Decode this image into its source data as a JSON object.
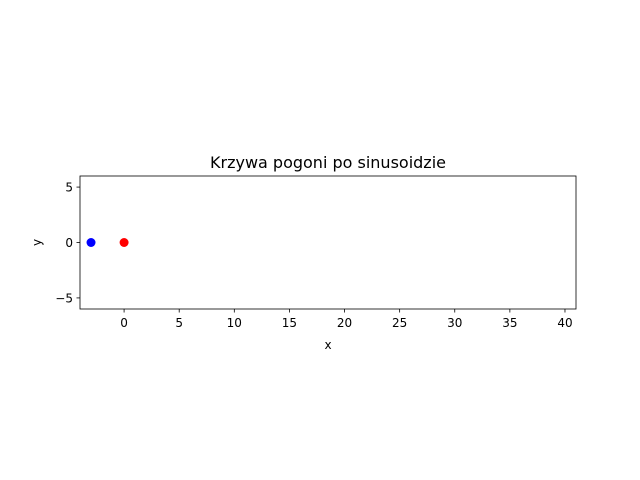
{
  "chart_data": {
    "type": "scatter",
    "title": "Krzywa pogoni po sinusoidzie",
    "xlabel": "x",
    "ylabel": "y",
    "xlim": [
      -4,
      41
    ],
    "ylim": [
      -6,
      6
    ],
    "x_ticks": [
      0,
      5,
      10,
      15,
      20,
      25,
      30,
      35,
      40
    ],
    "y_ticks": [
      -5,
      0,
      5
    ],
    "y_tick_labels": [
      "−5",
      "0",
      "5"
    ],
    "grid": false,
    "series": [
      {
        "color": "#0000ff",
        "points": [
          {
            "x": -3,
            "y": 0
          }
        ]
      },
      {
        "color": "#ff0000",
        "points": [
          {
            "x": 0,
            "y": 0
          }
        ]
      }
    ]
  }
}
